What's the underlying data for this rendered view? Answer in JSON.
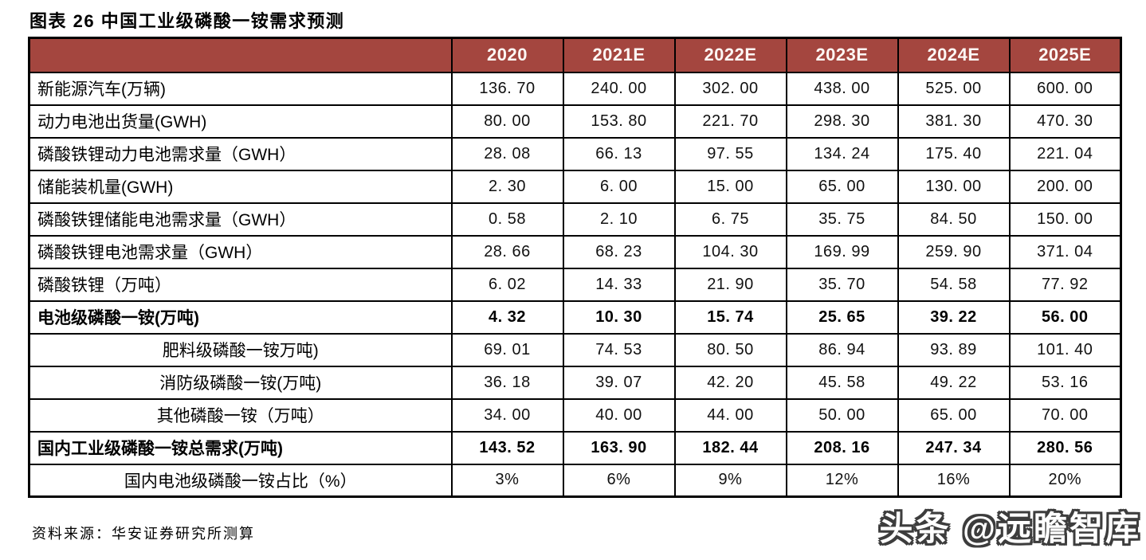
{
  "title": "图表 26 中国工业级磷酸一铵需求预测",
  "source_note": "资料来源：华安证券研究所测算",
  "watermark": {
    "text": "头条 @远瞻智库"
  },
  "colors": {
    "header_bg": "#A4463F",
    "header_text": "#FDF7F4",
    "border": "#000000",
    "background": "#FFFFFF",
    "watermark_fill": "#FFFFFF",
    "watermark_outline": "#3D3D3D"
  },
  "chart_data": {
    "type": "table",
    "title": "图表 26 中国工业级磷酸一铵需求预测",
    "columns": [
      "",
      "2020",
      "2021E",
      "2022E",
      "2023E",
      "2024E",
      "2025E"
    ],
    "rows": [
      {
        "label": "新能源汽车(万辆)",
        "values": [
          "136. 70",
          "240. 00",
          "302. 00",
          "438. 00",
          "525. 00",
          "600. 00"
        ],
        "bold": false,
        "label_align": "left"
      },
      {
        "label": "动力电池出货量(GWH)",
        "values": [
          "80. 00",
          "153. 80",
          "221. 70",
          "298. 30",
          "381. 30",
          "470. 30"
        ],
        "bold": false,
        "label_align": "left"
      },
      {
        "label": "磷酸铁锂动力电池需求量（GWH）",
        "values": [
          "28. 08",
          "66. 13",
          "97. 55",
          "134. 24",
          "175. 40",
          "221. 04"
        ],
        "bold": false,
        "label_align": "left"
      },
      {
        "label": "储能装机量(GWH)",
        "values": [
          "2. 30",
          "6. 00",
          "15. 00",
          "65. 00",
          "130. 00",
          "200. 00"
        ],
        "bold": false,
        "label_align": "left"
      },
      {
        "label": "磷酸铁锂储能电池需求量（GWH）",
        "values": [
          "0. 58",
          "2. 10",
          "6. 75",
          "35. 75",
          "84. 50",
          "150. 00"
        ],
        "bold": false,
        "label_align": "left"
      },
      {
        "label": "磷酸铁锂电池需求量（GWH）",
        "values": [
          "28. 66",
          "68. 23",
          "104. 30",
          "169. 99",
          "259. 90",
          "371. 04"
        ],
        "bold": false,
        "label_align": "left"
      },
      {
        "label": "磷酸铁锂（万吨）",
        "values": [
          "6. 02",
          "14. 33",
          "21. 90",
          "35. 70",
          "54. 58",
          "77. 92"
        ],
        "bold": false,
        "label_align": "left"
      },
      {
        "label": "电池级磷酸一铵(万吨)",
        "values": [
          "4. 32",
          "10. 30",
          "15. 74",
          "25. 65",
          "39. 22",
          "56. 00"
        ],
        "bold": true,
        "label_align": "left"
      },
      {
        "label": "肥料级磷酸一铵万吨)",
        "values": [
          "69. 01",
          "74. 53",
          "80. 50",
          "86. 94",
          "93. 89",
          "101. 40"
        ],
        "bold": false,
        "label_align": "center"
      },
      {
        "label": "消防级磷酸一铵(万吨)",
        "values": [
          "36. 18",
          "39. 07",
          "42. 20",
          "45. 58",
          "49. 22",
          "53. 16"
        ],
        "bold": false,
        "label_align": "center"
      },
      {
        "label": "其他磷酸一铵（万吨）",
        "values": [
          "34. 00",
          "40. 00",
          "44. 00",
          "50. 00",
          "65. 00",
          "70. 00"
        ],
        "bold": false,
        "label_align": "center"
      },
      {
        "label": "国内工业级磷酸一铵总需求(万吨)",
        "values": [
          "143. 52",
          "163. 90",
          "182. 44",
          "208. 16",
          "247. 34",
          "280. 56"
        ],
        "bold": true,
        "label_align": "left"
      },
      {
        "label": "国内电池级磷酸一铵占比（%）",
        "values": [
          "3%",
          "6%",
          "9%",
          "12%",
          "16%",
          "20%"
        ],
        "bold": false,
        "label_align": "center"
      }
    ],
    "source": "资料来源：华安证券研究所测算",
    "layout": {
      "grid": "on",
      "header_row_color": "#A4463F",
      "first_column_role": "row-labels"
    }
  }
}
